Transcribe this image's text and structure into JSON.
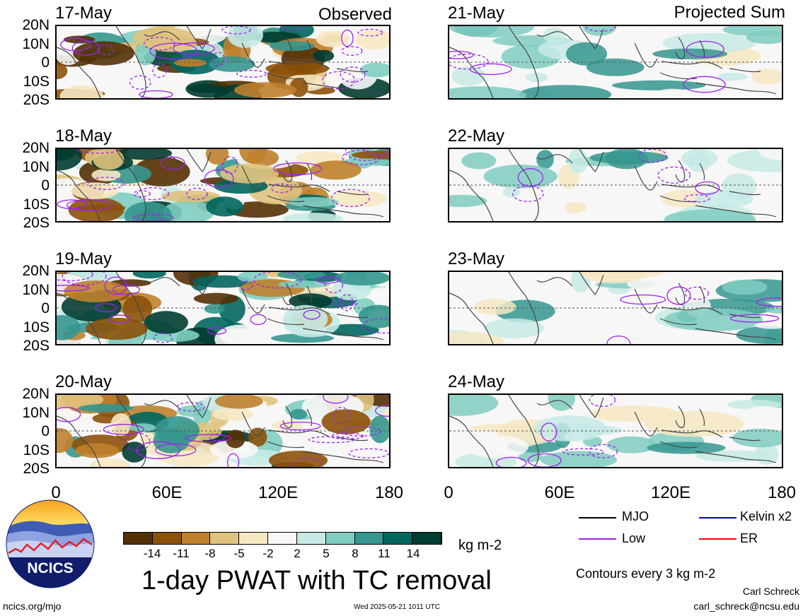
{
  "panels": {
    "observed_title": "Observed",
    "projected_title": "Projected Sum",
    "left_dates": [
      "17-May",
      "18-May",
      "19-May",
      "20-May"
    ],
    "right_dates": [
      "21-May",
      "22-May",
      "23-May",
      "24-May"
    ],
    "lat_ticks": [
      "20N",
      "10N",
      "0",
      "10S",
      "20S"
    ],
    "lon_ticks": [
      "0",
      "60E",
      "120E",
      "180"
    ]
  },
  "colorbar": {
    "labels": [
      "-14",
      "-11",
      "-8",
      "-5",
      "-2",
      "2",
      "5",
      "8",
      "11",
      "14"
    ],
    "colors": [
      "#543005",
      "#8c510a",
      "#bf812d",
      "#dfc27d",
      "#f6e8c3",
      "#f7f7f7",
      "#c7eae5",
      "#80cdc1",
      "#35978f",
      "#01665e",
      "#003c30"
    ],
    "units": "kg m-2"
  },
  "legend": {
    "items": [
      {
        "label": "MJO",
        "color": "#000000"
      },
      {
        "label": "Kelvin x2",
        "color": "#0000ff"
      },
      {
        "label": "Low",
        "color": "#a020f0"
      },
      {
        "label": "ER",
        "color": "#ff0000"
      }
    ],
    "contour_note": "Contours every 3 kg m-2"
  },
  "title": "1-day PWAT with TC removal",
  "logo_text": "NCICS",
  "footer": {
    "url": "ncics.org/mjo",
    "timestamp": "Wed 2025-05-21 1011 UTC",
    "author": "Carl Schreck",
    "email": "carl_schreck@ncsu.edu"
  }
}
